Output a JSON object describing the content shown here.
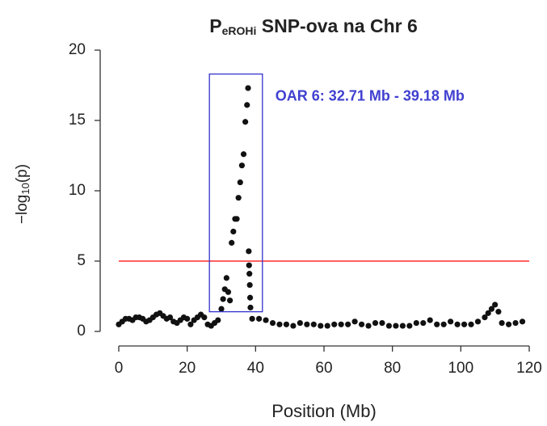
{
  "chart_data": {
    "type": "scatter",
    "title": {
      "main": "P",
      "sub": "eROHi",
      "rest": " SNP-ova na Chr 6"
    },
    "x_label": "Position (Mb)",
    "y_label": {
      "main": "−log",
      "sub": "10",
      "rest": "(p)"
    },
    "annotation": "OAR 6: 32.71 Mb - 39.18 Mb",
    "annotation_color": "#4040d0",
    "highlight": {
      "x": [
        26.5,
        42
      ],
      "y": [
        1.4,
        18.3
      ],
      "color": "#3333cc"
    },
    "threshold": 5,
    "threshold_color": "#ff0000",
    "color": "#111111",
    "xlim": [
      0,
      120
    ],
    "ylim": [
      0,
      20
    ],
    "xticks": [
      0,
      20,
      40,
      60,
      80,
      100,
      120
    ],
    "yticks": [
      0,
      5,
      10,
      15,
      20
    ],
    "x": [
      0,
      1,
      2,
      3,
      4,
      5,
      6,
      7,
      8,
      9,
      10,
      11,
      12,
      13,
      14,
      15,
      16,
      17,
      18,
      19,
      20,
      21,
      22,
      23,
      24,
      25,
      26,
      27,
      28,
      29,
      30,
      30.5,
      31,
      31.5,
      32,
      32.5,
      33,
      33.5,
      34,
      34.5,
      35,
      35.5,
      36,
      36.5,
      37,
      37.5,
      37.8,
      38,
      38.1,
      38.2,
      38.3,
      38.4,
      38.5,
      39,
      41,
      43,
      45,
      47,
      49,
      51,
      53,
      55,
      57,
      59,
      61,
      63,
      65,
      67,
      69,
      71,
      73,
      75,
      77,
      79,
      81,
      83,
      85,
      87,
      89,
      91,
      93,
      95,
      97,
      99,
      101,
      103,
      105,
      107,
      108,
      109,
      110,
      111,
      112,
      114,
      116,
      118
    ],
    "y": [
      0.5,
      0.7,
      0.9,
      0.9,
      0.8,
      1.0,
      1.0,
      0.9,
      0.7,
      0.8,
      1.0,
      1.2,
      1.3,
      1.1,
      0.9,
      1.0,
      0.7,
      0.6,
      0.8,
      1.0,
      0.9,
      0.5,
      0.8,
      1.0,
      1.2,
      1.0,
      0.5,
      0.4,
      0.6,
      0.8,
      1.6,
      2.3,
      3.0,
      3.8,
      2.8,
      2.2,
      6.3,
      7.1,
      8.0,
      8.0,
      9.5,
      10.6,
      11.8,
      12.6,
      14.9,
      16.1,
      17.3,
      5.7,
      4.7,
      4.1,
      3.3,
      2.4,
      1.7,
      0.9,
      0.9,
      0.8,
      0.6,
      0.5,
      0.5,
      0.4,
      0.6,
      0.5,
      0.5,
      0.4,
      0.4,
      0.5,
      0.5,
      0.5,
      0.7,
      0.5,
      0.4,
      0.6,
      0.6,
      0.4,
      0.4,
      0.4,
      0.4,
      0.6,
      0.6,
      0.8,
      0.5,
      0.5,
      0.7,
      0.5,
      0.5,
      0.5,
      0.7,
      1.0,
      1.3,
      1.6,
      1.9,
      1.4,
      0.6,
      0.5,
      0.6,
      0.7
    ]
  }
}
